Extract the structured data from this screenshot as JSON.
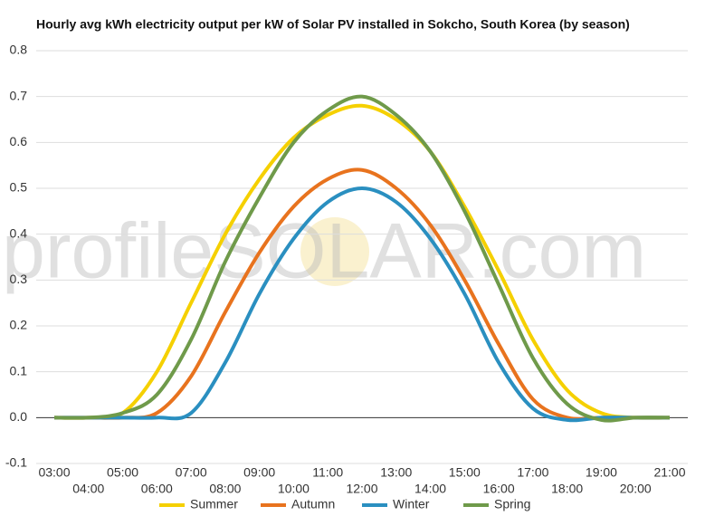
{
  "chart_data": {
    "type": "line",
    "title": "Hourly avg kWh electricity output per kW of Solar PV installed in Sokcho, South Korea (by season)",
    "watermark": "profileSOLAR.com",
    "categories": [
      "03:00",
      "04:00",
      "05:00",
      "06:00",
      "07:00",
      "08:00",
      "09:00",
      "10:00",
      "11:00",
      "12:00",
      "13:00",
      "14:00",
      "15:00",
      "16:00",
      "17:00",
      "18:00",
      "19:00",
      "20:00",
      "21:00"
    ],
    "series": [
      {
        "name": "Summer",
        "color": "#f5d000",
        "values": [
          0,
          0,
          0.01,
          0.1,
          0.25,
          0.4,
          0.52,
          0.61,
          0.66,
          0.68,
          0.65,
          0.58,
          0.46,
          0.32,
          0.17,
          0.06,
          0.01,
          0,
          0
        ]
      },
      {
        "name": "Autumn",
        "color": "#e8731e",
        "values": [
          0,
          0,
          0,
          0.01,
          0.09,
          0.23,
          0.36,
          0.46,
          0.52,
          0.54,
          0.5,
          0.42,
          0.3,
          0.16,
          0.04,
          0,
          0,
          0,
          0
        ]
      },
      {
        "name": "Winter",
        "color": "#2a8fc0",
        "values": [
          0,
          0,
          0,
          0,
          0.01,
          0.12,
          0.27,
          0.39,
          0.47,
          0.5,
          0.47,
          0.39,
          0.27,
          0.12,
          0.02,
          -0.005,
          0,
          0,
          0
        ]
      },
      {
        "name": "Spring",
        "color": "#6f9a4a",
        "values": [
          0,
          0,
          0.01,
          0.05,
          0.17,
          0.34,
          0.48,
          0.6,
          0.67,
          0.7,
          0.66,
          0.58,
          0.45,
          0.29,
          0.13,
          0.03,
          -0.005,
          0,
          0
        ]
      }
    ],
    "ylim": [
      -0.1,
      0.8
    ],
    "yticks": [
      -0.1,
      {
        "value": 0,
        "label": "0.0"
      },
      0.1,
      0.2,
      0.3,
      0.4,
      0.5,
      0.6,
      0.7,
      0.8
    ],
    "grid": true,
    "legend": "bottom"
  }
}
